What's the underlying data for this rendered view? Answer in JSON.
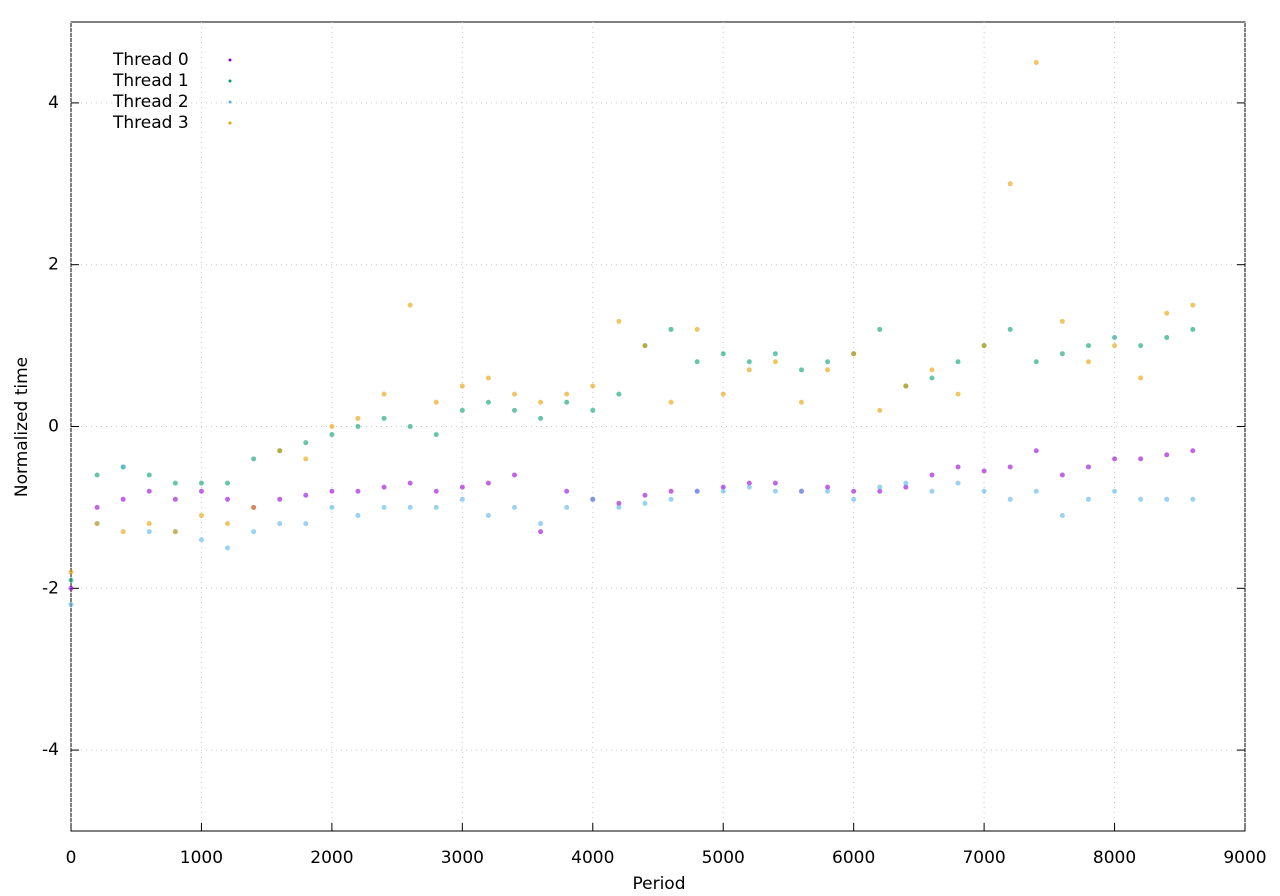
{
  "chart_data": {
    "type": "scatter",
    "xlabel": "Period",
    "ylabel": "Normalized time",
    "xlim": [
      0,
      9000
    ],
    "ylim": [
      -5,
      5
    ],
    "xticks": [
      0,
      1000,
      2000,
      3000,
      4000,
      5000,
      6000,
      7000,
      8000,
      9000
    ],
    "yticks": [
      -4,
      -2,
      0,
      2,
      4
    ],
    "grid": true,
    "legend": "top-left",
    "x": [
      0,
      200,
      400,
      600,
      800,
      1000,
      1200,
      1400,
      1600,
      1800,
      2000,
      2200,
      2400,
      2600,
      2800,
      3000,
      3200,
      3400,
      3600,
      3800,
      4000,
      4200,
      4400,
      4600,
      4800,
      5000,
      5200,
      5400,
      5600,
      5800,
      6000,
      6200,
      6400,
      6600,
      6800,
      7000,
      7200,
      7400,
      7600,
      7800,
      8000,
      8200,
      8400,
      8600
    ],
    "series": [
      {
        "name": "Thread 0",
        "color": "#9400d3",
        "values": [
          -2.0,
          -1.0,
          -0.9,
          -0.8,
          -0.9,
          -0.8,
          -0.9,
          -1.0,
          -0.9,
          -0.85,
          -0.8,
          -0.8,
          -0.75,
          -0.7,
          -0.8,
          -0.75,
          -0.7,
          -0.6,
          -1.3,
          -0.8,
          -0.9,
          -0.95,
          -0.85,
          -0.8,
          -0.8,
          -0.75,
          -0.7,
          -0.7,
          -0.8,
          -0.75,
          -0.8,
          -0.8,
          -0.75,
          -0.6,
          -0.5,
          -0.55,
          -0.5,
          -0.3,
          -0.6,
          -0.5,
          -0.4,
          -0.4,
          -0.35,
          -0.3
        ]
      },
      {
        "name": "Thread 1",
        "color": "#009e73",
        "values": [
          -1.9,
          -0.6,
          -0.5,
          -0.6,
          -0.7,
          -0.7,
          -0.7,
          -0.4,
          -0.3,
          -0.2,
          -0.1,
          0,
          0.1,
          0,
          -0.1,
          0.2,
          0.3,
          0.2,
          0.1,
          0.3,
          0.2,
          0.4,
          1.0,
          1.2,
          0.8,
          0.9,
          0.8,
          0.9,
          0.7,
          0.8,
          0.9,
          1.2,
          0.5,
          0.6,
          0.8,
          1.0,
          1.2,
          0.8,
          0.9,
          1.0,
          1.1,
          1.0,
          1.1,
          1.2
        ]
      },
      {
        "name": "Thread 2",
        "color": "#56b4e9",
        "values": [
          -2.2,
          -1.2,
          -0.5,
          -1.3,
          -1.3,
          -1.4,
          -1.5,
          -1.3,
          -1.2,
          -1.2,
          -1.0,
          -1.1,
          -1.0,
          -1.0,
          -1.0,
          -0.9,
          -1.1,
          -1.0,
          -1.2,
          -1.0,
          -0.9,
          -1.0,
          -0.95,
          -0.9,
          -0.8,
          -0.8,
          -0.75,
          -0.8,
          -0.8,
          -0.8,
          -0.9,
          -0.75,
          -0.7,
          -0.8,
          -0.7,
          -0.8,
          -0.9,
          -0.8,
          -1.1,
          -0.9,
          -0.8,
          -0.9,
          -0.9,
          -0.9
        ]
      },
      {
        "name": "Thread 3",
        "color": "#e69f00",
        "values": [
          -1.8,
          -1.2,
          -1.3,
          -1.2,
          -1.3,
          -1.1,
          -1.2,
          -1.0,
          -0.3,
          -0.4,
          0.0,
          0.1,
          0.4,
          1.5,
          0.3,
          0.5,
          0.6,
          0.4,
          0.3,
          0.4,
          0.5,
          1.3,
          1.0,
          0.3,
          1.2,
          0.4,
          0.7,
          0.8,
          0.3,
          0.7,
          0.9,
          0.2,
          0.5,
          0.7,
          0.4,
          1.0,
          3.0,
          4.5,
          1.3,
          0.8,
          1.0,
          0.6,
          1.4,
          1.5
        ]
      }
    ]
  }
}
